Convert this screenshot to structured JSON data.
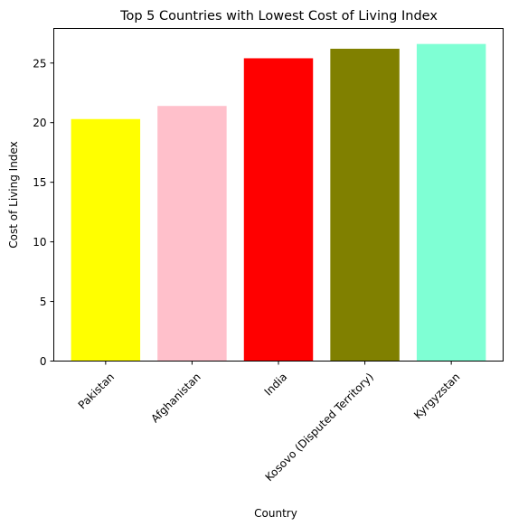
{
  "chart_data": {
    "type": "bar",
    "title": "Top 5 Countries with Lowest Cost of Living Index",
    "xlabel": "Country",
    "ylabel": "Cost of Living Index",
    "categories": [
      "Pakistan",
      "Afghanistan",
      "India",
      "Kosovo (Disputed Territory)",
      "Kyrgyzstan"
    ],
    "values": [
      20.3,
      21.4,
      25.4,
      26.2,
      26.6
    ],
    "colors": [
      "#ffff00",
      "#ffc0cb",
      "#ff0000",
      "#808000",
      "#7fffd4"
    ],
    "ylim": [
      0,
      27.9
    ],
    "yticks": [
      0,
      5,
      10,
      15,
      20,
      25
    ],
    "xtick_rotation": 45,
    "grid": false,
    "legend": "none"
  }
}
